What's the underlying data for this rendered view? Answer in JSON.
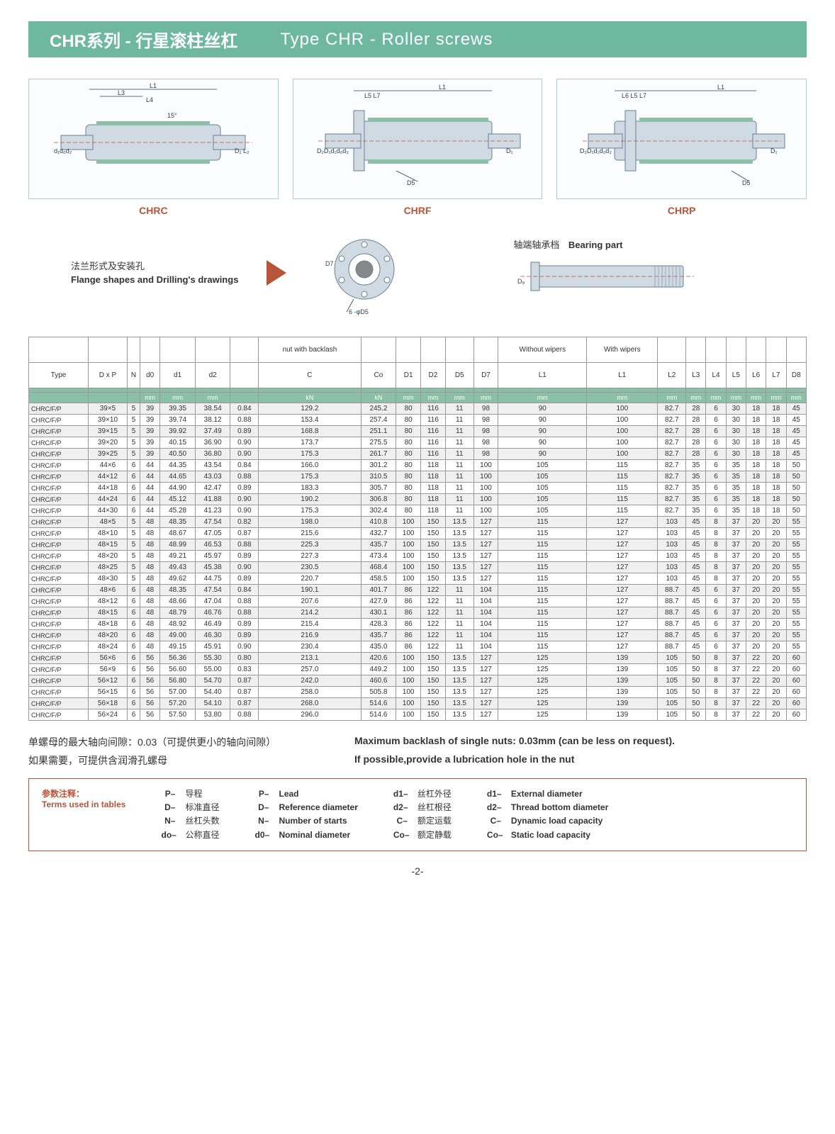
{
  "banner": {
    "cn": "CHR系列 - 行星滚柱丝杠",
    "en": "Type CHR - Roller screws"
  },
  "drawings": [
    {
      "label": "CHRC",
      "dims": [
        "L1",
        "L3",
        "L4",
        "d1",
        "d0",
        "d2",
        "D1",
        "L2"
      ]
    },
    {
      "label": "CHRF",
      "dims": [
        "L1",
        "L5",
        "L7",
        "D2",
        "D1",
        "d1",
        "d0",
        "d2",
        "D1",
        "D5"
      ]
    },
    {
      "label": "CHRP",
      "dims": [
        "L1",
        "L6",
        "L5",
        "L7",
        "D2",
        "D1",
        "d1",
        "d0",
        "d2",
        "D1",
        "D5"
      ]
    }
  ],
  "flange": {
    "cn": "法兰形式及安装孔",
    "en": "Flange shapes and Drilling's drawings",
    "dims": [
      "D7",
      "6",
      "φD5"
    ]
  },
  "bearing": {
    "cn": "轴端轴承档",
    "en": "Bearing part",
    "dim": "D8"
  },
  "table": {
    "group_headers": [
      "",
      "",
      "",
      "",
      "",
      "",
      "",
      "nut with backlash",
      "",
      "",
      "",
      "",
      "",
      "Without wipers",
      "With wipers",
      "",
      "",
      "",
      "",
      "",
      "",
      ""
    ],
    "headers": [
      "Type",
      "D x P",
      "N",
      "d0",
      "d1",
      "d2",
      "",
      "C",
      "Co",
      "D1",
      "D2",
      "D5",
      "D7",
      "L1",
      "L1",
      "L2",
      "L3",
      "L4",
      "L5",
      "L6",
      "L7",
      "D8"
    ],
    "units": [
      "",
      "",
      "",
      "mm",
      "mm",
      "mm",
      "",
      "kN",
      "kN",
      "mm",
      "mm",
      "mm",
      "mm",
      "mm",
      "mm",
      "mm",
      "mm",
      "mm",
      "mm",
      "mm",
      "mm",
      "mm"
    ],
    "rows": [
      [
        "CHRC/F/P",
        "39×5",
        "5",
        "39",
        "39.35",
        "38.54",
        "0.84",
        "129.2",
        "245.2",
        "80",
        "116",
        "11",
        "98",
        "90",
        "100",
        "82.7",
        "28",
        "6",
        "30",
        "18",
        "18",
        "45"
      ],
      [
        "CHRC/F/P",
        "39×10",
        "5",
        "39",
        "39.74",
        "38.12",
        "0.88",
        "153.4",
        "257.4",
        "80",
        "116",
        "11",
        "98",
        "90",
        "100",
        "82.7",
        "28",
        "6",
        "30",
        "18",
        "18",
        "45"
      ],
      [
        "CHRC/F/P",
        "39×15",
        "5",
        "39",
        "39.92",
        "37.49",
        "0.89",
        "168.8",
        "251.1",
        "80",
        "116",
        "11",
        "98",
        "90",
        "100",
        "82.7",
        "28",
        "6",
        "30",
        "18",
        "18",
        "45"
      ],
      [
        "CHRC/F/P",
        "39×20",
        "5",
        "39",
        "40.15",
        "36.90",
        "0.90",
        "173.7",
        "275.5",
        "80",
        "116",
        "11",
        "98",
        "90",
        "100",
        "82.7",
        "28",
        "6",
        "30",
        "18",
        "18",
        "45"
      ],
      [
        "CHRC/F/P",
        "39×25",
        "5",
        "39",
        "40.50",
        "36.80",
        "0.90",
        "175.3",
        "261.7",
        "80",
        "116",
        "11",
        "98",
        "90",
        "100",
        "82.7",
        "28",
        "6",
        "30",
        "18",
        "18",
        "45"
      ],
      [
        "CHRC/F/P",
        "44×6",
        "6",
        "44",
        "44.35",
        "43.54",
        "0.84",
        "166.0",
        "301.2",
        "80",
        "118",
        "11",
        "100",
        "105",
        "115",
        "82.7",
        "35",
        "6",
        "35",
        "18",
        "18",
        "50"
      ],
      [
        "CHRC/F/P",
        "44×12",
        "6",
        "44",
        "44.65",
        "43.03",
        "0.88",
        "175.3",
        "310.5",
        "80",
        "118",
        "11",
        "100",
        "105",
        "115",
        "82.7",
        "35",
        "6",
        "35",
        "18",
        "18",
        "50"
      ],
      [
        "CHRC/F/P",
        "44×18",
        "6",
        "44",
        "44.90",
        "42.47",
        "0.89",
        "183.3",
        "305.7",
        "80",
        "118",
        "11",
        "100",
        "105",
        "115",
        "82.7",
        "35",
        "6",
        "35",
        "18",
        "18",
        "50"
      ],
      [
        "CHRC/F/P",
        "44×24",
        "6",
        "44",
        "45.12",
        "41.88",
        "0.90",
        "190.2",
        "306.8",
        "80",
        "118",
        "11",
        "100",
        "105",
        "115",
        "82.7",
        "35",
        "6",
        "35",
        "18",
        "18",
        "50"
      ],
      [
        "CHRC/F/P",
        "44×30",
        "6",
        "44",
        "45.28",
        "41.23",
        "0.90",
        "175.3",
        "302.4",
        "80",
        "118",
        "11",
        "100",
        "105",
        "115",
        "82.7",
        "35",
        "6",
        "35",
        "18",
        "18",
        "50"
      ],
      [
        "CHRC/F/P",
        "48×5",
        "5",
        "48",
        "48.35",
        "47.54",
        "0.82",
        "198.0",
        "410.8",
        "100",
        "150",
        "13.5",
        "127",
        "115",
        "127",
        "103",
        "45",
        "8",
        "37",
        "20",
        "20",
        "55"
      ],
      [
        "CHRC/F/P",
        "48×10",
        "5",
        "48",
        "48.67",
        "47.05",
        "0.87",
        "215.6",
        "432.7",
        "100",
        "150",
        "13.5",
        "127",
        "115",
        "127",
        "103",
        "45",
        "8",
        "37",
        "20",
        "20",
        "55"
      ],
      [
        "CHRC/F/P",
        "48×15",
        "5",
        "48",
        "48.99",
        "46.53",
        "0.88",
        "225.3",
        "435.7",
        "100",
        "150",
        "13.5",
        "127",
        "115",
        "127",
        "103",
        "45",
        "8",
        "37",
        "20",
        "20",
        "55"
      ],
      [
        "CHRC/F/P",
        "48×20",
        "5",
        "48",
        "49.21",
        "45.97",
        "0.89",
        "227.3",
        "473.4",
        "100",
        "150",
        "13.5",
        "127",
        "115",
        "127",
        "103",
        "45",
        "8",
        "37",
        "20",
        "20",
        "55"
      ],
      [
        "CHRC/F/P",
        "48×25",
        "5",
        "48",
        "49.43",
        "45.38",
        "0.90",
        "230.5",
        "468.4",
        "100",
        "150",
        "13.5",
        "127",
        "115",
        "127",
        "103",
        "45",
        "8",
        "37",
        "20",
        "20",
        "55"
      ],
      [
        "CHRC/F/P",
        "48×30",
        "5",
        "48",
        "49.62",
        "44.75",
        "0.89",
        "220.7",
        "458.5",
        "100",
        "150",
        "13.5",
        "127",
        "115",
        "127",
        "103",
        "45",
        "8",
        "37",
        "20",
        "20",
        "55"
      ],
      [
        "CHRC/F/P",
        "48×6",
        "6",
        "48",
        "48.35",
        "47.54",
        "0.84",
        "190.1",
        "401.7",
        "86",
        "122",
        "11",
        "104",
        "115",
        "127",
        "88.7",
        "45",
        "6",
        "37",
        "20",
        "20",
        "55"
      ],
      [
        "CHRC/F/P",
        "48×12",
        "6",
        "48",
        "48.66",
        "47.04",
        "0.88",
        "207.6",
        "427.9",
        "86",
        "122",
        "11",
        "104",
        "115",
        "127",
        "88.7",
        "45",
        "6",
        "37",
        "20",
        "20",
        "55"
      ],
      [
        "CHRC/F/P",
        "48×15",
        "6",
        "48",
        "48.79",
        "46.76",
        "0.88",
        "214.2",
        "430.1",
        "86",
        "122",
        "11",
        "104",
        "115",
        "127",
        "88.7",
        "45",
        "6",
        "37",
        "20",
        "20",
        "55"
      ],
      [
        "CHRC/F/P",
        "48×18",
        "6",
        "48",
        "48.92",
        "46.49",
        "0.89",
        "215.4",
        "428.3",
        "86",
        "122",
        "11",
        "104",
        "115",
        "127",
        "88.7",
        "45",
        "6",
        "37",
        "20",
        "20",
        "55"
      ],
      [
        "CHRC/F/P",
        "48×20",
        "6",
        "48",
        "49.00",
        "46.30",
        "0.89",
        "216.9",
        "435.7",
        "86",
        "122",
        "11",
        "104",
        "115",
        "127",
        "88.7",
        "45",
        "6",
        "37",
        "20",
        "20",
        "55"
      ],
      [
        "CHRC/F/P",
        "48×24",
        "6",
        "48",
        "49.15",
        "45.91",
        "0.90",
        "230.4",
        "435.0",
        "86",
        "122",
        "11",
        "104",
        "115",
        "127",
        "88.7",
        "45",
        "6",
        "37",
        "20",
        "20",
        "55"
      ],
      [
        "CHRC/F/P",
        "56×6",
        "6",
        "56",
        "56.36",
        "55.30",
        "0.80",
        "213.1",
        "420.6",
        "100",
        "150",
        "13.5",
        "127",
        "125",
        "139",
        "105",
        "50",
        "8",
        "37",
        "22",
        "20",
        "60"
      ],
      [
        "CHRC/F/P",
        "56×9",
        "6",
        "56",
        "56.60",
        "55.00",
        "0.83",
        "257.0",
        "449.2",
        "100",
        "150",
        "13.5",
        "127",
        "125",
        "139",
        "105",
        "50",
        "8",
        "37",
        "22",
        "20",
        "60"
      ],
      [
        "CHRC/F/P",
        "56×12",
        "6",
        "56",
        "56.80",
        "54.70",
        "0.87",
        "242.0",
        "460.6",
        "100",
        "150",
        "13.5",
        "127",
        "125",
        "139",
        "105",
        "50",
        "8",
        "37",
        "22",
        "20",
        "60"
      ],
      [
        "CHRC/F/P",
        "56×15",
        "6",
        "56",
        "57.00",
        "54.40",
        "0.87",
        "258.0",
        "505.8",
        "100",
        "150",
        "13.5",
        "127",
        "125",
        "139",
        "105",
        "50",
        "8",
        "37",
        "22",
        "20",
        "60"
      ],
      [
        "CHRC/F/P",
        "56×18",
        "6",
        "56",
        "57.20",
        "54.10",
        "0.87",
        "268.0",
        "514.6",
        "100",
        "150",
        "13.5",
        "127",
        "125",
        "139",
        "105",
        "50",
        "8",
        "37",
        "22",
        "20",
        "60"
      ],
      [
        "CHRC/F/P",
        "56×24",
        "6",
        "56",
        "57.50",
        "53.80",
        "0.88",
        "296.0",
        "514.6",
        "100",
        "150",
        "13.5",
        "127",
        "125",
        "139",
        "105",
        "50",
        "8",
        "37",
        "22",
        "20",
        "60"
      ]
    ]
  },
  "notes": [
    {
      "cn": "单螺母的最大轴向间隙：0.03（可提供更小的轴向间隙）",
      "en": "Maximum backlash of single nuts: 0.03mm (can be less on request)."
    },
    {
      "cn": "如果需要，可提供含润滑孔螺母",
      "en": "If possible,provide a lubrication hole in the nut"
    }
  ],
  "terms": {
    "title_cn": "参数注释：",
    "title_en": "Terms used in tables",
    "cols": [
      [
        {
          "s": "P",
          "d": "导程"
        },
        {
          "s": "D",
          "d": "标准直径"
        },
        {
          "s": "N",
          "d": "丝杠头数"
        },
        {
          "s": "do",
          "d": "公称直径"
        }
      ],
      [
        {
          "s": "P",
          "d": "Lead"
        },
        {
          "s": "D",
          "d": "Reference diameter"
        },
        {
          "s": "N",
          "d": "Number of starts"
        },
        {
          "s": "d0",
          "d": "Nominal diameter"
        }
      ],
      [
        {
          "s": "d1",
          "d": "丝杠外径"
        },
        {
          "s": "d2",
          "d": "丝杠根径"
        },
        {
          "s": "C",
          "d": "额定运载"
        },
        {
          "s": "Co",
          "d": "额定静载"
        }
      ],
      [
        {
          "s": "d1",
          "d": "External diameter"
        },
        {
          "s": "d2",
          "d": "Thread bottom diameter"
        },
        {
          "s": "C",
          "d": "Dynamic load capacity"
        },
        {
          "s": "Co",
          "d": "Static load capacity"
        }
      ]
    ]
  },
  "pagenum": "-2-"
}
